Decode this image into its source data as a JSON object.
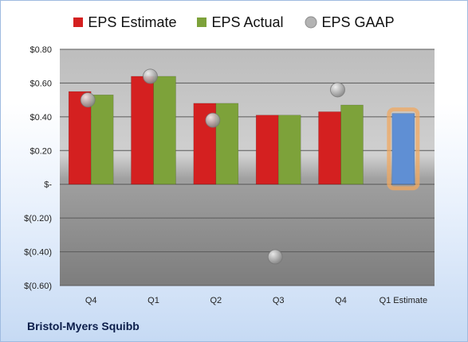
{
  "company": "Bristol-Myers Squibb",
  "chart_data": {
    "type": "bar",
    "categories": [
      "Q4",
      "Q1",
      "Q2",
      "Q3",
      "Q4",
      "Q1 Estimate"
    ],
    "series": [
      {
        "name": "EPS Estimate",
        "values": [
          0.55,
          0.64,
          0.48,
          0.41,
          0.43,
          null
        ],
        "color": "#d42020"
      },
      {
        "name": "EPS Actual",
        "values": [
          0.53,
          0.64,
          0.48,
          0.41,
          0.47,
          null
        ],
        "color": "#7da23a"
      },
      {
        "name": "EPS GAAP",
        "values": [
          0.5,
          0.64,
          0.38,
          -0.43,
          0.56,
          null
        ],
        "color": "#a9a9a9",
        "marker": "circle"
      }
    ],
    "estimate": {
      "category": "Q1 Estimate",
      "value": 0.42,
      "color": "#5f8fd4",
      "glow": "#f0a860"
    },
    "ylim": [
      -0.6,
      0.8
    ],
    "yticks": [
      0.8,
      0.6,
      0.4,
      0.2,
      0,
      -0.2,
      -0.4,
      -0.6
    ],
    "ytick_labels": [
      "$0.80",
      "$0.60",
      "$0.40",
      "$0.20",
      "$-",
      "$(0.20)",
      "$(0.40)",
      "$(0.60)"
    ],
    "grid": true,
    "legend_position": "top"
  }
}
